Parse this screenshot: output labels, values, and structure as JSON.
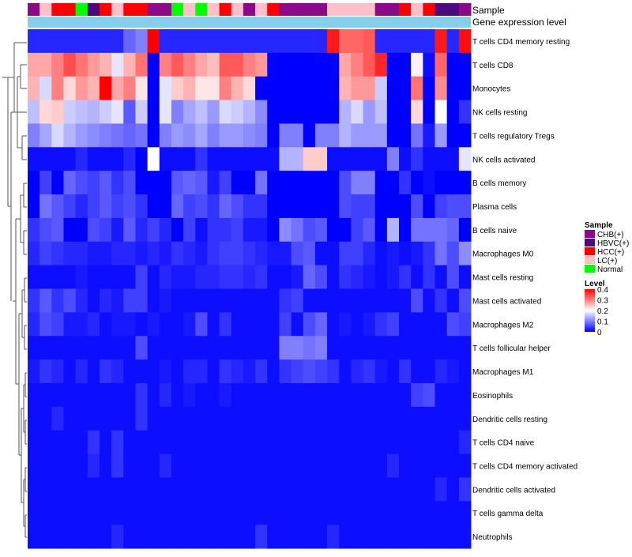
{
  "chart_data": {
    "type": "heatmap",
    "title": "",
    "annotation_labels": {
      "sample": "Sample",
      "expression": "Gene expression level"
    },
    "legend": {
      "sample_title": "Sample",
      "sample_entries": [
        {
          "label": "CHB(+)",
          "color": "#8b0a88"
        },
        {
          "label": "HBVC(+)",
          "color": "#4b0a7d"
        },
        {
          "label": "HCC(+)",
          "color": "#ff0000"
        },
        {
          "label": "LC(+)",
          "color": "#ffc0cb"
        },
        {
          "label": "Normal",
          "color": "#00ff00"
        }
      ],
      "level_title": "Level",
      "level_ticks": [
        "0.4",
        "0.3",
        "0.2",
        "0.1",
        "0"
      ],
      "level_range": [
        0,
        0.4
      ]
    },
    "color_scale": {
      "low": "#0000ff",
      "mid": "#ffffff",
      "high": "#ff0000",
      "mid_value": 0.2
    },
    "expression_bar_color": "#87ceeb",
    "samples": [
      "CHB",
      "LC",
      "HCC",
      "HCC",
      "Normal",
      "HBVC",
      "HCC",
      "LC",
      "HCC",
      "HCC",
      "CHB",
      "CHB",
      "Normal",
      "LC",
      "Normal",
      "LC",
      "HCC",
      "LC",
      "CHB",
      "LC",
      "HCC",
      "CHB",
      "CHB",
      "CHB",
      "CHB",
      "LC",
      "LC",
      "LC",
      "LC",
      "CHB",
      "CHB",
      "HCC",
      "LC",
      "HCC",
      "HBVC",
      "HBVC",
      "CHB"
    ],
    "row_labels": [
      "T cells CD4 memory resting",
      "T cells CD8",
      "Monocytes",
      "NK cells resting",
      "T cells regulatory  Tregs",
      "NK cells activated",
      "B cells memory",
      "Plasma cells",
      "B cells naive",
      "Macrophages M0",
      "Mast cells resting",
      "Mast cells activated",
      "Macrophages M2",
      "T cells follicular helper",
      "Macrophages M1",
      "Eosinophils",
      "Dendritic cells resting",
      "T cells CD4 naive",
      "T cells CD4 memory activated",
      "Dendritic cells activated",
      "T cells gamma delta",
      "Neutrophils"
    ],
    "values": [
      [
        0.03,
        0.03,
        0.03,
        0.03,
        0.03,
        0.03,
        0.03,
        0.03,
        0.08,
        0.1,
        0.4,
        0.03,
        0.03,
        0.03,
        0.03,
        0.03,
        0.03,
        0.03,
        0.03,
        0.03,
        0.03,
        0.03,
        0.03,
        0.03,
        0.03,
        0.38,
        0.32,
        0.32,
        0.33,
        0.03,
        0.03,
        0.03,
        0.03,
        0.03,
        0.38,
        0.03,
        0.39
      ],
      [
        0.27,
        0.27,
        0.3,
        0.34,
        0.31,
        0.28,
        0.26,
        0.18,
        0.26,
        0.31,
        0.0,
        0.3,
        0.33,
        0.3,
        0.27,
        0.25,
        0.33,
        0.33,
        0.3,
        0.28,
        0.0,
        0.0,
        0.0,
        0.0,
        0.0,
        0.0,
        0.27,
        0.3,
        0.33,
        0.37,
        0.0,
        0.0,
        0.21,
        0.01,
        0.32,
        0.0,
        0.0
      ],
      [
        0.26,
        0.17,
        0.3,
        0.23,
        0.28,
        0.26,
        0.4,
        0.27,
        0.3,
        0.22,
        0.0,
        0.18,
        0.24,
        0.26,
        0.22,
        0.22,
        0.3,
        0.26,
        0.23,
        0.0,
        0.0,
        0.0,
        0.0,
        0.0,
        0.0,
        0.0,
        0.26,
        0.28,
        0.28,
        0.16,
        0.0,
        0.0,
        0.31,
        0.0,
        0.29,
        0.0,
        0.0
      ],
      [
        0.15,
        0.23,
        0.24,
        0.16,
        0.15,
        0.14,
        0.16,
        0.18,
        0.07,
        0.16,
        0.0,
        0.18,
        0.1,
        0.13,
        0.15,
        0.12,
        0.17,
        0.16,
        0.14,
        0.11,
        0.0,
        0.0,
        0.0,
        0.0,
        0.0,
        0.0,
        0.14,
        0.17,
        0.12,
        0.15,
        0.0,
        0.0,
        0.23,
        0.0,
        0.2,
        0.0,
        0.04
      ],
      [
        0.1,
        0.13,
        0.17,
        0.14,
        0.12,
        0.11,
        0.1,
        0.09,
        0.08,
        0.09,
        0.0,
        0.1,
        0.12,
        0.11,
        0.13,
        0.1,
        0.12,
        0.12,
        0.11,
        0.1,
        0.0,
        0.1,
        0.1,
        0.0,
        0.1,
        0.1,
        0.14,
        0.12,
        0.12,
        0.12,
        0.0,
        0.0,
        0.09,
        0.02,
        0.12,
        0.0,
        0.0
      ],
      [
        0.01,
        0.01,
        0.01,
        0.01,
        0.03,
        0.01,
        0.01,
        0.01,
        0.03,
        0.0,
        0.2,
        0.01,
        0.01,
        0.01,
        0.04,
        0.01,
        0.01,
        0.01,
        0.01,
        0.01,
        0.01,
        0.14,
        0.14,
        0.24,
        0.24,
        0.01,
        0.01,
        0.01,
        0.01,
        0.01,
        0.1,
        0.01,
        0.04,
        0.01,
        0.01,
        0.01,
        0.18
      ],
      [
        0.0,
        0.05,
        0.0,
        0.08,
        0.06,
        0.05,
        0.07,
        0.04,
        0.06,
        0.0,
        0.0,
        0.0,
        0.07,
        0.08,
        0.07,
        0.02,
        0.05,
        0.0,
        0.0,
        0.09,
        0.0,
        0.0,
        0.0,
        0.0,
        0.0,
        0.0,
        0.06,
        0.1,
        0.1,
        0.0,
        0.0,
        0.04,
        0.0,
        0.01,
        0.0,
        0.0,
        0.0
      ],
      [
        0.0,
        0.09,
        0.07,
        0.05,
        0.03,
        0.05,
        0.07,
        0.05,
        0.06,
        0.04,
        0.0,
        0.0,
        0.08,
        0.05,
        0.06,
        0.04,
        0.08,
        0.06,
        0.04,
        0.04,
        0.0,
        0.0,
        0.0,
        0.0,
        0.0,
        0.0,
        0.06,
        0.05,
        0.05,
        0.0,
        0.0,
        0.0,
        0.06,
        0.0,
        0.05,
        0.06,
        0.06
      ],
      [
        0.04,
        0.06,
        0.07,
        0.0,
        0.0,
        0.06,
        0.05,
        0.02,
        0.07,
        0.03,
        0.05,
        0.03,
        0.0,
        0.05,
        0.01,
        0.04,
        0.04,
        0.05,
        0.02,
        0.02,
        0.0,
        0.11,
        0.09,
        0.06,
        0.07,
        0.0,
        0.0,
        0.05,
        0.07,
        0.0,
        0.14,
        0.0,
        0.09,
        0.09,
        0.09,
        0.08,
        0.0
      ],
      [
        0.03,
        0.05,
        0.04,
        0.03,
        0.03,
        0.02,
        0.02,
        0.03,
        0.03,
        0.02,
        0.03,
        0.02,
        0.04,
        0.03,
        0.02,
        0.04,
        0.05,
        0.05,
        0.04,
        0.03,
        0.02,
        0.02,
        0.06,
        0.07,
        0.01,
        0.01,
        0.05,
        0.05,
        0.03,
        0.01,
        0.02,
        0.01,
        0.02,
        0.04,
        0.09,
        0.06,
        0.11
      ],
      [
        0.01,
        0.01,
        0.01,
        0.01,
        0.02,
        0.01,
        0.01,
        0.01,
        0.01,
        0.05,
        0.01,
        0.03,
        0.02,
        0.02,
        0.03,
        0.03,
        0.04,
        0.04,
        0.03,
        0.04,
        0.01,
        0.01,
        0.02,
        0.08,
        0.06,
        0.01,
        0.04,
        0.03,
        0.02,
        0.01,
        0.02,
        0.04,
        0.01,
        0.04,
        0.01,
        0.06,
        0.01
      ],
      [
        0.04,
        0.07,
        0.04,
        0.06,
        0.03,
        0.01,
        0.03,
        0.02,
        0.05,
        0.05,
        0.01,
        0.02,
        0.01,
        0.01,
        0.01,
        0.01,
        0.01,
        0.01,
        0.01,
        0.01,
        0.01,
        0.04,
        0.05,
        0.01,
        0.01,
        0.01,
        0.01,
        0.01,
        0.01,
        0.01,
        0.01,
        0.01,
        0.06,
        0.01,
        0.04,
        0.01,
        0.06
      ],
      [
        0.03,
        0.06,
        0.05,
        0.02,
        0.02,
        0.03,
        0.01,
        0.02,
        0.02,
        0.01,
        0.02,
        0.01,
        0.01,
        0.02,
        0.06,
        0.01,
        0.04,
        0.01,
        0.01,
        0.01,
        0.01,
        0.05,
        0.01,
        0.06,
        0.08,
        0.01,
        0.02,
        0.01,
        0.02,
        0.04,
        0.05,
        0.01,
        0.01,
        0.01,
        0.01,
        0.06,
        0.05
      ],
      [
        0.01,
        0.01,
        0.01,
        0.01,
        0.01,
        0.01,
        0.01,
        0.01,
        0.01,
        0.06,
        0.01,
        0.01,
        0.01,
        0.01,
        0.01,
        0.01,
        0.01,
        0.01,
        0.01,
        0.01,
        0.01,
        0.1,
        0.1,
        0.09,
        0.1,
        0.01,
        0.01,
        0.01,
        0.01,
        0.01,
        0.01,
        0.01,
        0.01,
        0.01,
        0.01,
        0.01,
        0.01
      ],
      [
        0.02,
        0.04,
        0.03,
        0.01,
        0.03,
        0.01,
        0.04,
        0.03,
        0.01,
        0.01,
        0.01,
        0.02,
        0.01,
        0.03,
        0.03,
        0.01,
        0.04,
        0.03,
        0.02,
        0.04,
        0.01,
        0.04,
        0.05,
        0.06,
        0.05,
        0.04,
        0.01,
        0.03,
        0.04,
        0.02,
        0.01,
        0.04,
        0.01,
        0.01,
        0.03,
        0.02,
        0.01
      ],
      [
        0.01,
        0.01,
        0.01,
        0.01,
        0.01,
        0.01,
        0.01,
        0.01,
        0.01,
        0.04,
        0.01,
        0.03,
        0.01,
        0.02,
        0.01,
        0.01,
        0.02,
        0.01,
        0.01,
        0.01,
        0.01,
        0.01,
        0.01,
        0.01,
        0.01,
        0.01,
        0.01,
        0.01,
        0.01,
        0.01,
        0.01,
        0.01,
        0.05,
        0.06,
        0.01,
        0.01,
        0.01
      ],
      [
        0.01,
        0.01,
        0.03,
        0.01,
        0.01,
        0.01,
        0.01,
        0.01,
        0.01,
        0.04,
        0.01,
        0.01,
        0.01,
        0.01,
        0.01,
        0.01,
        0.01,
        0.01,
        0.01,
        0.01,
        0.01,
        0.01,
        0.01,
        0.01,
        0.01,
        0.01,
        0.01,
        0.01,
        0.01,
        0.01,
        0.01,
        0.01,
        0.01,
        0.01,
        0.01,
        0.01,
        0.01
      ],
      [
        0.01,
        0.01,
        0.01,
        0.01,
        0.01,
        0.04,
        0.01,
        0.04,
        0.01,
        0.01,
        0.01,
        0.01,
        0.01,
        0.01,
        0.01,
        0.01,
        0.01,
        0.01,
        0.01,
        0.01,
        0.01,
        0.01,
        0.01,
        0.01,
        0.01,
        0.01,
        0.01,
        0.01,
        0.01,
        0.01,
        0.01,
        0.01,
        0.01,
        0.01,
        0.01,
        0.01,
        0.03
      ],
      [
        0.01,
        0.01,
        0.01,
        0.01,
        0.01,
        0.03,
        0.01,
        0.04,
        0.01,
        0.01,
        0.01,
        0.03,
        0.01,
        0.01,
        0.01,
        0.01,
        0.01,
        0.01,
        0.01,
        0.01,
        0.01,
        0.01,
        0.01,
        0.01,
        0.01,
        0.01,
        0.01,
        0.01,
        0.01,
        0.01,
        0.03,
        0.01,
        0.01,
        0.01,
        0.01,
        0.01,
        0.01
      ],
      [
        0.01,
        0.01,
        0.01,
        0.01,
        0.01,
        0.01,
        0.01,
        0.01,
        0.01,
        0.01,
        0.01,
        0.01,
        0.01,
        0.01,
        0.01,
        0.01,
        0.01,
        0.01,
        0.01,
        0.01,
        0.01,
        0.01,
        0.01,
        0.01,
        0.01,
        0.01,
        0.01,
        0.01,
        0.01,
        0.01,
        0.01,
        0.01,
        0.01,
        0.01,
        0.03,
        0.01,
        0.04
      ],
      [
        0.01,
        0.01,
        0.01,
        0.01,
        0.01,
        0.01,
        0.01,
        0.01,
        0.01,
        0.01,
        0.01,
        0.01,
        0.01,
        0.01,
        0.01,
        0.01,
        0.01,
        0.01,
        0.01,
        0.01,
        0.01,
        0.01,
        0.01,
        0.01,
        0.01,
        0.01,
        0.01,
        0.01,
        0.01,
        0.01,
        0.01,
        0.01,
        0.01,
        0.01,
        0.01,
        0.01,
        0.01
      ],
      [
        0.01,
        0.01,
        0.01,
        0.01,
        0.01,
        0.01,
        0.01,
        0.03,
        0.01,
        0.01,
        0.01,
        0.01,
        0.01,
        0.01,
        0.01,
        0.01,
        0.01,
        0.01,
        0.01,
        0.04,
        0.01,
        0.01,
        0.01,
        0.01,
        0.01,
        0.03,
        0.01,
        0.01,
        0.01,
        0.01,
        0.01,
        0.01,
        0.01,
        0.01,
        0.01,
        0.01,
        0.01
      ]
    ]
  }
}
